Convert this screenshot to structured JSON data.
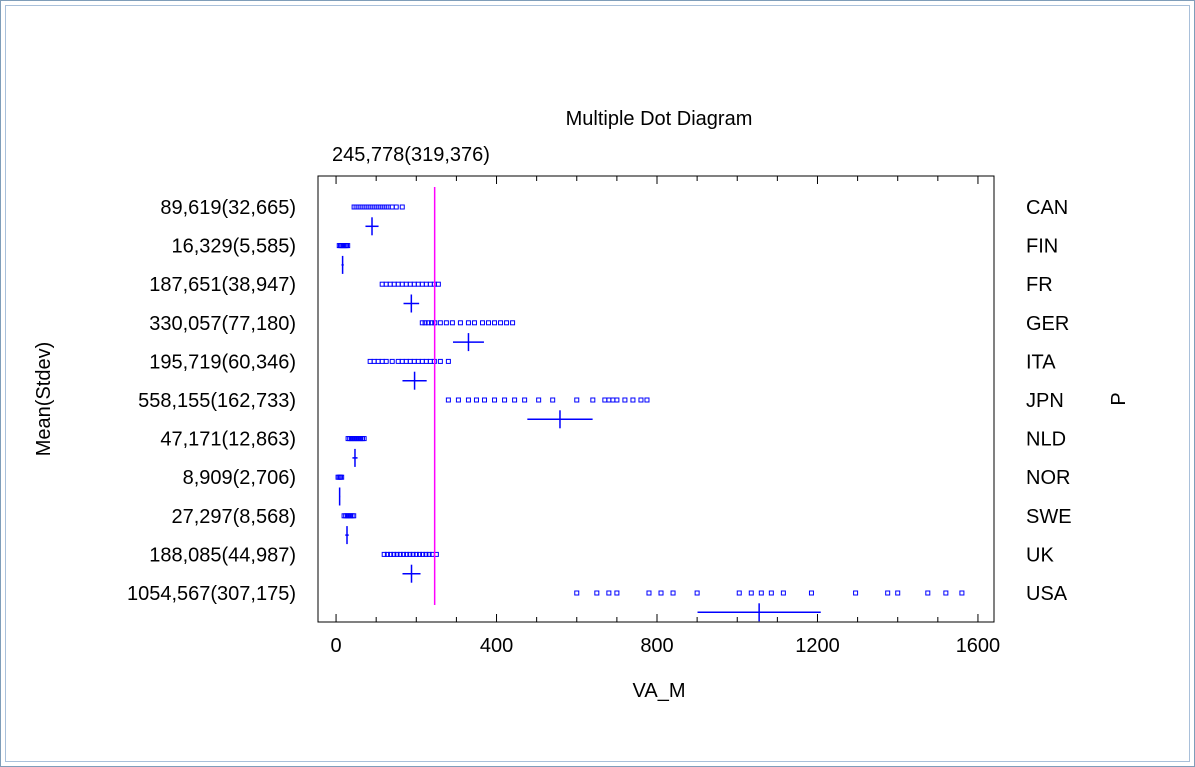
{
  "chart_data": {
    "type": "scatter",
    "title": "Multiple Dot Diagram",
    "overall_summary": "245,778(319,376)",
    "overall_mean": 245.778,
    "xlabel": "VA_M",
    "ylabel": "Mean(Stdev)",
    "right_axis_label": "P",
    "xlim": [
      -45,
      1640
    ],
    "xticks": [
      "0",
      "400",
      "800",
      "1200",
      "1600"
    ],
    "xtick_values": [
      0,
      400,
      800,
      1200,
      1600
    ],
    "minor_step": 100,
    "colors": {
      "points": "#0000ff",
      "mean_line": "#ff00ff",
      "axes": "#000000"
    },
    "groups": [
      {
        "name": "CAN",
        "summary": "89,619(32,665)",
        "mean": 89.619,
        "stdev": 32.665,
        "points": [
          45,
          50,
          55,
          60,
          65,
          70,
          75,
          80,
          85,
          90,
          95,
          100,
          105,
          110,
          115,
          120,
          125,
          130,
          140,
          150,
          165
        ]
      },
      {
        "name": "FIN",
        "summary": "16,329(5,585)",
        "mean": 16.329,
        "stdev": 5.585,
        "points": [
          8,
          11,
          14,
          17,
          20,
          23,
          26,
          29
        ]
      },
      {
        "name": "FR",
        "summary": "187,651(38,947)",
        "mean": 187.651,
        "stdev": 38.947,
        "points": [
          115,
          125,
          135,
          145,
          155,
          165,
          175,
          185,
          195,
          205,
          215,
          225,
          235,
          245,
          255
        ]
      },
      {
        "name": "GER",
        "summary": "330,057(77,180)",
        "mean": 330.057,
        "stdev": 77.18,
        "points": [
          215,
          222,
          230,
          238,
          246,
          260,
          275,
          290,
          310,
          330,
          345,
          365,
          380,
          395,
          410,
          425,
          440
        ]
      },
      {
        "name": "ITA",
        "summary": "195,719(60,346)",
        "mean": 195.719,
        "stdev": 60.346,
        "points": [
          85,
          95,
          105,
          115,
          125,
          140,
          155,
          165,
          175,
          185,
          195,
          205,
          215,
          225,
          235,
          245,
          260,
          280
        ]
      },
      {
        "name": "JPN",
        "summary": "558,155(162,733)",
        "mean": 558.155,
        "stdev": 162.733,
        "points": [
          280,
          305,
          330,
          350,
          370,
          395,
          420,
          445,
          470,
          505,
          540,
          600,
          640,
          670,
          680,
          690,
          700,
          720,
          740,
          760,
          775
        ]
      },
      {
        "name": "NLD",
        "summary": "47,171(12,863)",
        "mean": 47.171,
        "stdev": 12.863,
        "points": [
          30,
          34,
          38,
          42,
          46,
          50,
          54,
          58,
          62,
          66,
          70
        ]
      },
      {
        "name": "NOR",
        "summary": "8,909(2,706)",
        "mean": 8.909,
        "stdev": 2.706,
        "points": [
          5,
          8,
          11,
          14
        ]
      },
      {
        "name": "SWE",
        "summary": "27,297(8,568)",
        "mean": 27.297,
        "stdev": 8.568,
        "points": [
          20,
          24,
          28,
          32,
          36,
          40,
          44
        ]
      },
      {
        "name": "UK",
        "summary": "188,085(44,987)",
        "mean": 188.085,
        "stdev": 44.987,
        "points": [
          120,
          128,
          136,
          144,
          152,
          160,
          168,
          176,
          184,
          192,
          200,
          208,
          216,
          224,
          232,
          240,
          250
        ]
      },
      {
        "name": "USA",
        "summary": "1054,567(307,175)",
        "mean": 1054.567,
        "stdev": 307.175,
        "points": [
          600,
          650,
          680,
          700,
          780,
          810,
          840,
          900,
          1005,
          1035,
          1060,
          1085,
          1115,
          1185,
          1295,
          1375,
          1400,
          1475,
          1520,
          1560
        ]
      }
    ]
  }
}
